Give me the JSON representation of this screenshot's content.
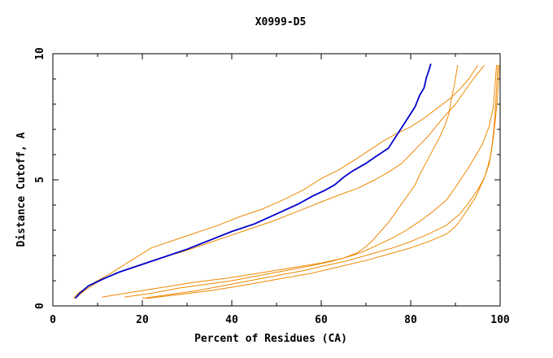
{
  "chart_data": {
    "type": "line",
    "title": "X0999-D5",
    "xlabel": "Percent of Residues (CA)",
    "ylabel": "Distance Cutoff, A",
    "xlim": [
      0,
      100
    ],
    "ylim": [
      0,
      10
    ],
    "xticks": [
      0,
      20,
      40,
      60,
      80,
      100
    ],
    "xtick_labels": [
      "0",
      "20",
      "40",
      "60",
      "80",
      "100"
    ],
    "yticks": [
      0,
      5,
      10
    ],
    "ytick_labels": [
      "0",
      "5",
      "10"
    ],
    "grid": false,
    "series": [
      {
        "color": "#0000cc",
        "width": 1.8,
        "x": [
          5,
          6,
          8,
          11,
          15,
          20,
          25,
          30,
          35,
          40,
          45,
          50,
          55,
          58,
          61,
          63,
          65,
          67,
          70,
          72,
          75,
          77,
          79,
          81,
          82,
          83,
          83.5,
          84,
          84.5
        ],
        "y": [
          0.3,
          0.5,
          0.8,
          1.05,
          1.35,
          1.65,
          1.95,
          2.25,
          2.6,
          2.95,
          3.25,
          3.65,
          4.05,
          4.35,
          4.6,
          4.8,
          5.1,
          5.35,
          5.65,
          5.9,
          6.25,
          6.8,
          7.35,
          7.9,
          8.35,
          8.65,
          9.05,
          9.3,
          9.6
        ]
      },
      {
        "color": "#ee8800",
        "width": 1,
        "x": [
          4.5,
          6,
          9,
          13,
          17,
          22,
          27,
          32,
          37,
          42,
          47,
          52,
          56,
          60,
          64,
          68,
          71,
          74,
          77,
          80,
          83,
          86,
          89,
          91,
          93,
          95
        ],
        "y": [
          0.3,
          0.55,
          0.9,
          1.3,
          1.75,
          2.3,
          2.6,
          2.9,
          3.2,
          3.55,
          3.85,
          4.25,
          4.6,
          5.05,
          5.4,
          5.85,
          6.2,
          6.55,
          6.85,
          7.1,
          7.45,
          7.85,
          8.25,
          8.6,
          9.0,
          9.55
        ]
      },
      {
        "color": "#ee8800",
        "width": 1,
        "x": [
          5,
          7,
          10,
          14,
          19,
          24,
          29,
          34,
          39,
          44,
          49,
          54,
          59,
          64,
          68,
          72,
          75,
          78,
          81,
          84,
          87,
          90,
          92,
          94,
          96.5
        ],
        "y": [
          0.3,
          0.6,
          0.95,
          1.3,
          1.6,
          1.9,
          2.15,
          2.45,
          2.75,
          3.05,
          3.35,
          3.7,
          4.05,
          4.4,
          4.65,
          5.0,
          5.3,
          5.65,
          6.2,
          6.75,
          7.4,
          8.0,
          8.5,
          9.0,
          9.55
        ]
      },
      {
        "color": "#ee8800",
        "width": 1,
        "x": [
          11,
          18,
          25,
          32,
          39,
          46,
          53,
          60,
          65,
          68,
          70,
          71.5,
          73,
          75,
          77,
          79,
          81,
          82,
          83.5,
          85,
          86.5,
          87.5,
          88.5,
          89,
          89.8,
          90.5
        ],
        "y": [
          0.35,
          0.55,
          0.75,
          0.95,
          1.1,
          1.3,
          1.5,
          1.7,
          1.9,
          2.1,
          2.35,
          2.6,
          2.9,
          3.3,
          3.8,
          4.3,
          4.8,
          5.2,
          5.7,
          6.2,
          6.7,
          7.1,
          7.6,
          8.1,
          8.8,
          9.55
        ]
      },
      {
        "color": "#ee8800",
        "width": 1,
        "x": [
          16,
          22,
          28,
          34,
          40,
          46,
          52,
          58,
          63,
          67,
          70,
          73,
          76,
          79,
          82,
          85,
          88,
          90,
          91.5,
          93,
          94.5,
          96,
          97.5,
          98.5,
          99.2
        ],
        "y": [
          0.35,
          0.5,
          0.7,
          0.85,
          1.0,
          1.2,
          1.4,
          1.6,
          1.8,
          2.0,
          2.2,
          2.45,
          2.7,
          3.0,
          3.35,
          3.75,
          4.2,
          4.7,
          5.1,
          5.5,
          5.95,
          6.4,
          7.1,
          7.9,
          9.55
        ]
      },
      {
        "color": "#ee8800",
        "width": 1,
        "x": [
          20,
          26,
          32,
          38,
          44,
          50,
          56,
          61,
          66,
          71,
          76,
          80,
          84,
          88,
          91,
          93,
          95,
          96.5,
          97.5,
          98,
          98.5,
          99,
          99.5,
          99.8
        ],
        "y": [
          0.3,
          0.45,
          0.6,
          0.8,
          1.0,
          1.2,
          1.4,
          1.6,
          1.8,
          2.05,
          2.3,
          2.55,
          2.85,
          3.2,
          3.65,
          4.1,
          4.6,
          5.1,
          5.6,
          6.1,
          6.7,
          7.5,
          8.5,
          9.55
        ]
      },
      {
        "color": "#ee8800",
        "width": 1,
        "x": [
          21,
          28,
          35,
          42,
          50,
          58,
          64,
          70,
          75,
          80,
          84,
          88,
          90,
          91.5,
          93,
          94.5,
          95.5,
          96.5,
          97.2,
          97.8,
          98.2,
          98.6,
          99,
          99.5
        ],
        "y": [
          0.3,
          0.45,
          0.6,
          0.8,
          1.05,
          1.3,
          1.55,
          1.8,
          2.05,
          2.3,
          2.55,
          2.85,
          3.15,
          3.5,
          3.9,
          4.3,
          4.7,
          5.1,
          5.5,
          5.9,
          6.4,
          7.0,
          8.0,
          9.55
        ]
      }
    ]
  }
}
